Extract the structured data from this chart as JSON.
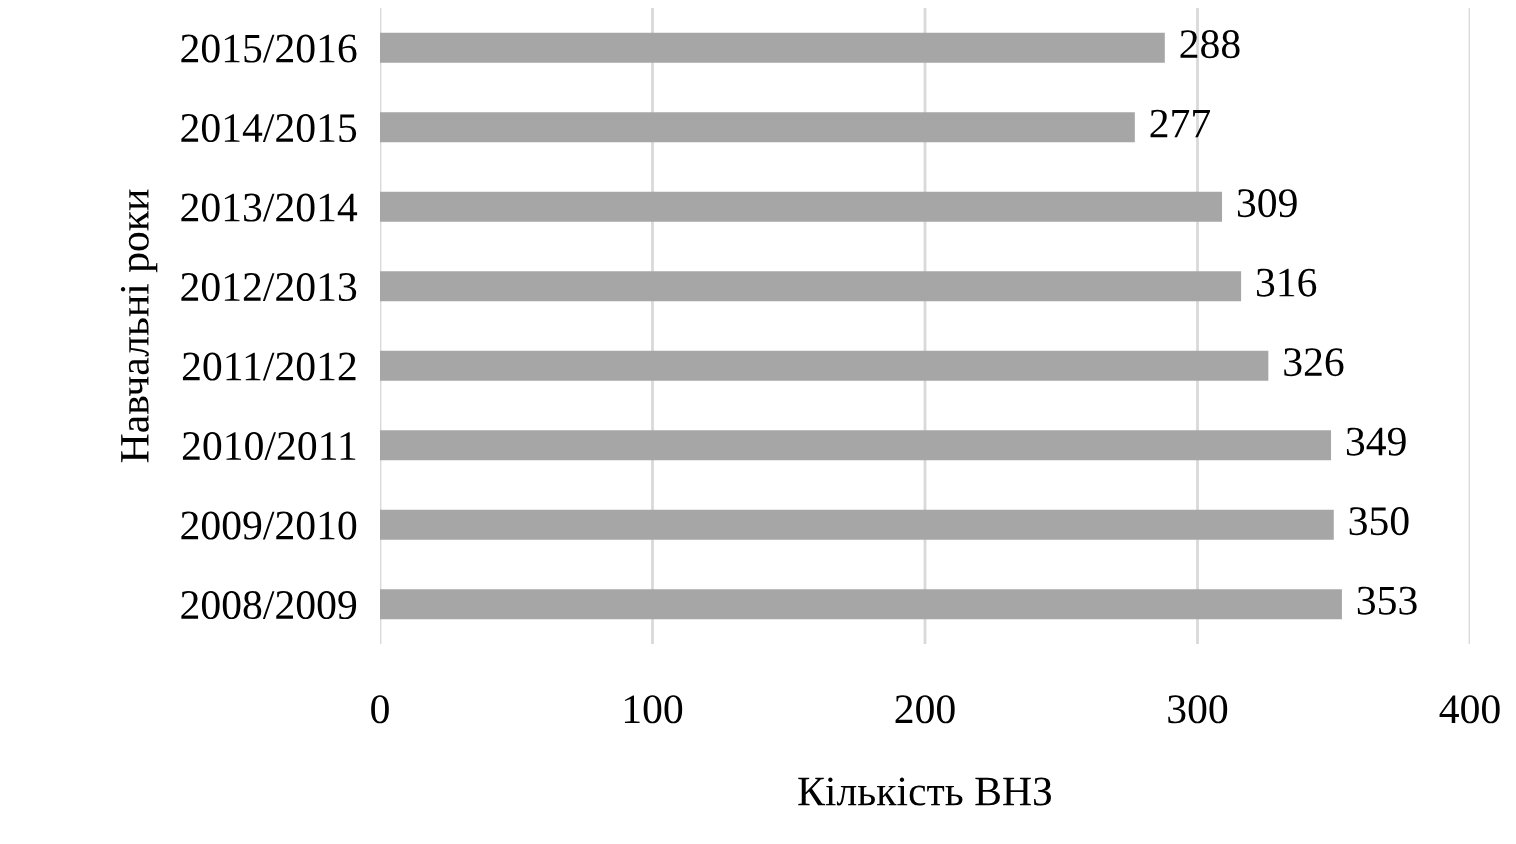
{
  "chart_data": {
    "type": "bar",
    "orientation": "horizontal",
    "categories": [
      "2015/2016",
      "2014/2015",
      "2013/2014",
      "2012/2013",
      "2011/2012",
      "2010/2011",
      "2009/2010",
      "2008/2009"
    ],
    "values": [
      288,
      277,
      309,
      316,
      326,
      349,
      350,
      353
    ],
    "color": "#a6a6a6",
    "xlabel": "Кількість ВНЗ",
    "ylabel": "Навчальні роки",
    "xlim": [
      0,
      400
    ],
    "xticks": [
      0,
      100,
      200,
      300,
      400
    ],
    "grid": "x",
    "data_labels": true
  }
}
